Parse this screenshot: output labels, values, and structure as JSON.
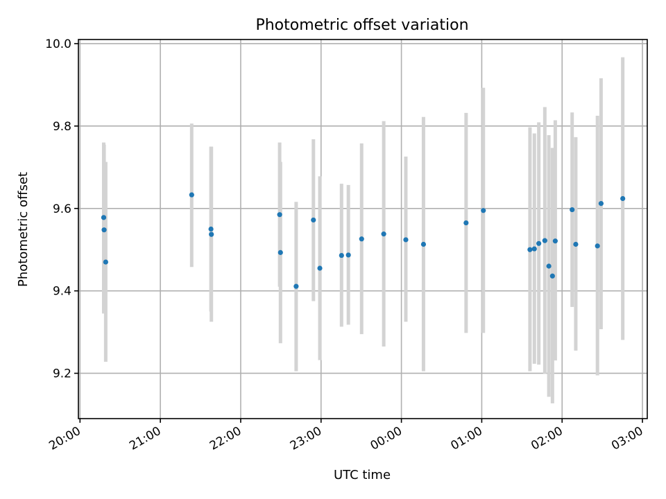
{
  "chart_data": {
    "type": "scatter",
    "title": "Photometric offset variation",
    "xlabel": "UTC time",
    "ylabel": "Photometric offset",
    "grid": true,
    "legend": "none",
    "x_range_hours": [
      19.98,
      27.06
    ],
    "ylim": [
      9.09,
      10.01
    ],
    "x_ticks": [
      {
        "hour": 20,
        "label": "20:00"
      },
      {
        "hour": 21,
        "label": "21:00"
      },
      {
        "hour": 22,
        "label": "22:00"
      },
      {
        "hour": 23,
        "label": "23:00"
      },
      {
        "hour": 24,
        "label": "00:00"
      },
      {
        "hour": 25,
        "label": "01:00"
      },
      {
        "hour": 26,
        "label": "02:00"
      },
      {
        "hour": 27,
        "label": "03:00"
      }
    ],
    "y_ticks": [
      {
        "value": 9.2,
        "label": "9.2"
      },
      {
        "value": 9.4,
        "label": "9.4"
      },
      {
        "value": 9.6,
        "label": "9.6"
      },
      {
        "value": 9.8,
        "label": "9.8"
      },
      {
        "value": 10.0,
        "label": "10.0"
      }
    ],
    "marker_color": "#1f77b4",
    "errorbar_color": "#d3d3d3",
    "points": [
      {
        "x": 20.295,
        "y": 9.578,
        "low": 9.345,
        "high": 9.76
      },
      {
        "x": 20.3,
        "y": 9.548,
        "low": 9.4,
        "high": 9.755
      },
      {
        "x": 20.32,
        "y": 9.47,
        "low": 9.228,
        "high": 9.713
      },
      {
        "x": 21.39,
        "y": 9.633,
        "low": 9.458,
        "high": 9.806
      },
      {
        "x": 21.63,
        "y": 9.55,
        "low": 9.35,
        "high": 9.75
      },
      {
        "x": 21.635,
        "y": 9.537,
        "low": 9.325,
        "high": 9.75
      },
      {
        "x": 22.485,
        "y": 9.585,
        "low": 9.41,
        "high": 9.76
      },
      {
        "x": 22.495,
        "y": 9.493,
        "low": 9.273,
        "high": 9.713
      },
      {
        "x": 22.69,
        "y": 9.411,
        "low": 9.205,
        "high": 9.616
      },
      {
        "x": 22.905,
        "y": 9.572,
        "low": 9.375,
        "high": 9.768
      },
      {
        "x": 22.985,
        "y": 9.455,
        "low": 9.232,
        "high": 9.678
      },
      {
        "x": 23.255,
        "y": 9.486,
        "low": 9.313,
        "high": 9.66
      },
      {
        "x": 23.34,
        "y": 9.487,
        "low": 9.318,
        "high": 9.657
      },
      {
        "x": 23.505,
        "y": 9.526,
        "low": 9.295,
        "high": 9.758
      },
      {
        "x": 23.78,
        "y": 9.538,
        "low": 9.265,
        "high": 9.812
      },
      {
        "x": 24.055,
        "y": 9.524,
        "low": 9.325,
        "high": 9.726
      },
      {
        "x": 24.275,
        "y": 9.513,
        "low": 9.205,
        "high": 9.822
      },
      {
        "x": 24.805,
        "y": 9.565,
        "low": 9.298,
        "high": 9.832
      },
      {
        "x": 25.02,
        "y": 9.595,
        "low": 9.298,
        "high": 9.893
      },
      {
        "x": 25.6,
        "y": 9.5,
        "low": 9.205,
        "high": 9.797
      },
      {
        "x": 25.655,
        "y": 9.502,
        "low": 9.223,
        "high": 9.782
      },
      {
        "x": 25.71,
        "y": 9.515,
        "low": 9.221,
        "high": 9.809
      },
      {
        "x": 25.785,
        "y": 9.522,
        "low": 9.199,
        "high": 9.846
      },
      {
        "x": 25.835,
        "y": 9.46,
        "low": 9.143,
        "high": 9.778
      },
      {
        "x": 25.88,
        "y": 9.436,
        "low": 9.127,
        "high": 9.747
      },
      {
        "x": 25.915,
        "y": 9.521,
        "low": 9.231,
        "high": 9.814
      },
      {
        "x": 26.125,
        "y": 9.597,
        "low": 9.361,
        "high": 9.833
      },
      {
        "x": 26.17,
        "y": 9.513,
        "low": 9.255,
        "high": 9.773
      },
      {
        "x": 26.44,
        "y": 9.509,
        "low": 9.195,
        "high": 9.825
      },
      {
        "x": 26.485,
        "y": 9.612,
        "low": 9.307,
        "high": 9.916
      },
      {
        "x": 26.755,
        "y": 9.624,
        "low": 9.281,
        "high": 9.967
      }
    ]
  }
}
